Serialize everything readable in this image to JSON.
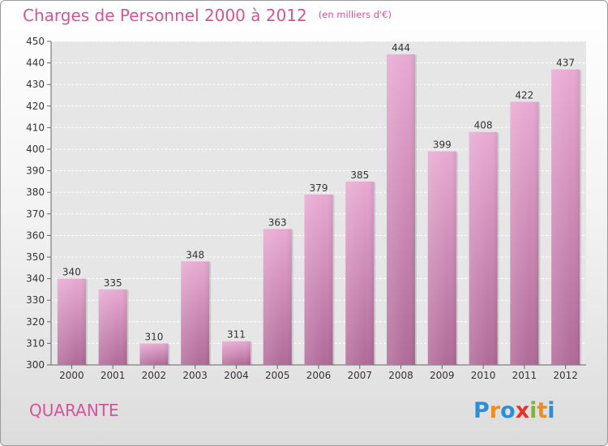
{
  "chart_data": {
    "type": "bar",
    "title": "Charges de Personnel 2000 à 2012",
    "subtitle": "(en milliers d'€)",
    "categories": [
      "2000",
      "2001",
      "2002",
      "2003",
      "2004",
      "2005",
      "2006",
      "2007",
      "2008",
      "2009",
      "2010",
      "2011",
      "2012"
    ],
    "values": [
      340,
      335,
      310,
      348,
      311,
      363,
      379,
      385,
      444,
      399,
      408,
      422,
      437
    ],
    "ylim": [
      300,
      450
    ],
    "yticks": [
      300,
      310,
      320,
      330,
      340,
      350,
      360,
      370,
      380,
      390,
      400,
      410,
      420,
      430,
      440,
      450
    ],
    "grid": true,
    "bar_color_top": "#e8a9d2",
    "bar_color_bottom": "#b06a98",
    "label_color": "#333333"
  },
  "footer": {
    "commune": "QUARANTE",
    "logo_letters": [
      {
        "ch": "P",
        "color": "#2a8fd6"
      },
      {
        "ch": "r",
        "color": "#f08c1a"
      },
      {
        "ch": "o",
        "color": "#2a8fd6"
      },
      {
        "ch": "x",
        "color": "#e2342d"
      },
      {
        "ch": "i",
        "color": "#7cb82f"
      },
      {
        "ch": "t",
        "color": "#f08c1a"
      },
      {
        "ch": "i",
        "color": "#2a8fd6"
      }
    ]
  }
}
